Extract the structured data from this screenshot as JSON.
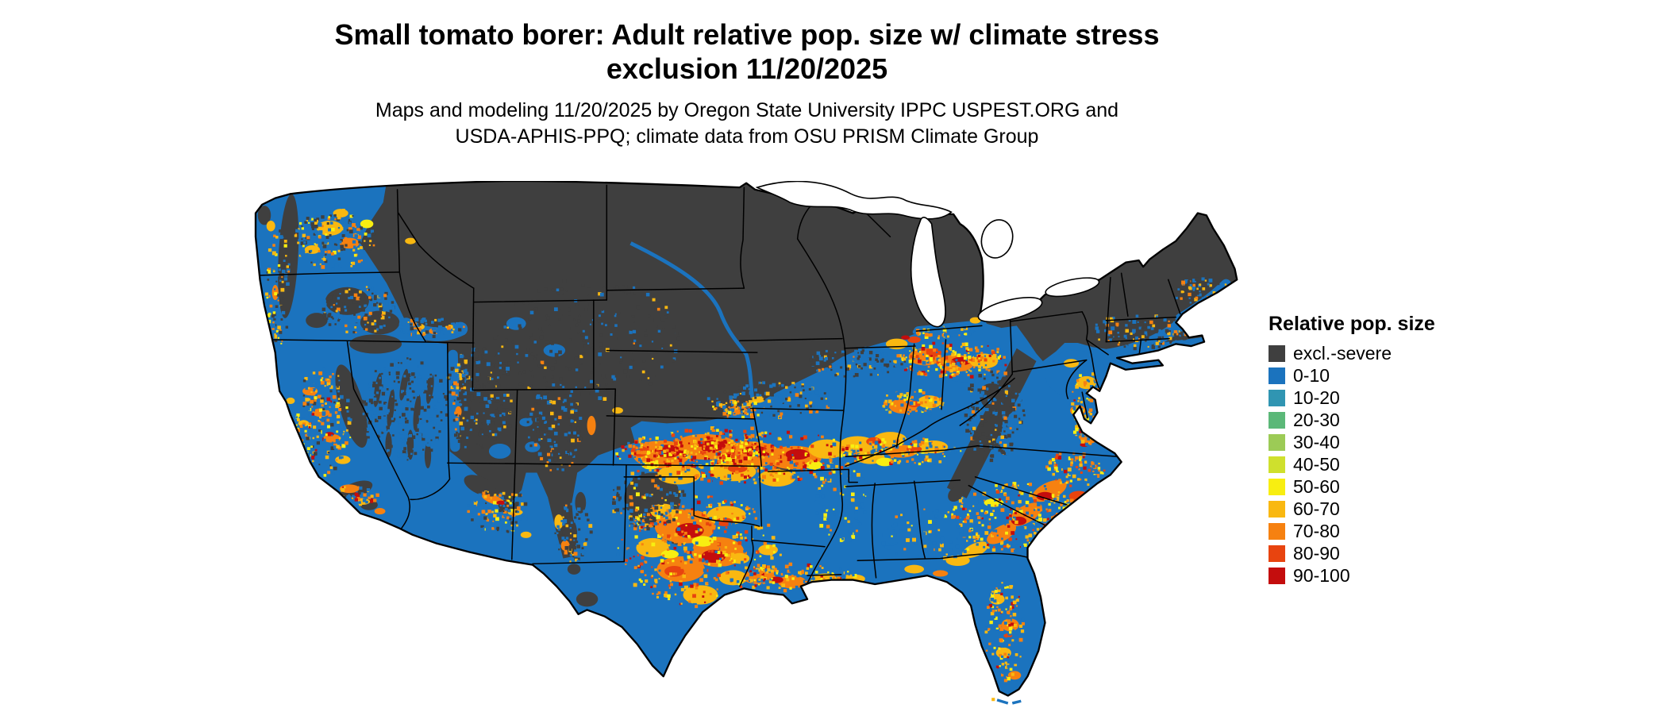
{
  "header": {
    "title_line1": "Small tomato borer: Adult relative pop. size w/ climate stress",
    "title_line2": "exclusion 11/20/2025",
    "subtitle_line1": "Maps and modeling 11/20/2025 by Oregon State University IPPC USPEST.ORG and",
    "subtitle_line2": "USDA-APHIS-PPQ; climate data from OSU PRISM Climate Group"
  },
  "map": {
    "region": "Continental United States",
    "kind": "raster choropleth of adult relative population size"
  },
  "legend": {
    "title": "Relative pop. size",
    "items": [
      {
        "label": "excl.-severe",
        "color": "#3F3F3F"
      },
      {
        "label": "0-10",
        "color": "#1B73BE"
      },
      {
        "label": "10-20",
        "color": "#3095B2"
      },
      {
        "label": "20-30",
        "color": "#5BB878"
      },
      {
        "label": "30-40",
        "color": "#9CCB56"
      },
      {
        "label": "40-50",
        "color": "#CFE02D"
      },
      {
        "label": "50-60",
        "color": "#F8EE11"
      },
      {
        "label": "60-70",
        "color": "#F9B811"
      },
      {
        "label": "70-80",
        "color": "#F68110"
      },
      {
        "label": "80-90",
        "color": "#E8440F"
      },
      {
        "label": "90-100",
        "color": "#C40D0D"
      }
    ]
  },
  "colors": {
    "background": "#FFFFFF",
    "state_border": "#000000",
    "water": "#FFFFFF"
  }
}
